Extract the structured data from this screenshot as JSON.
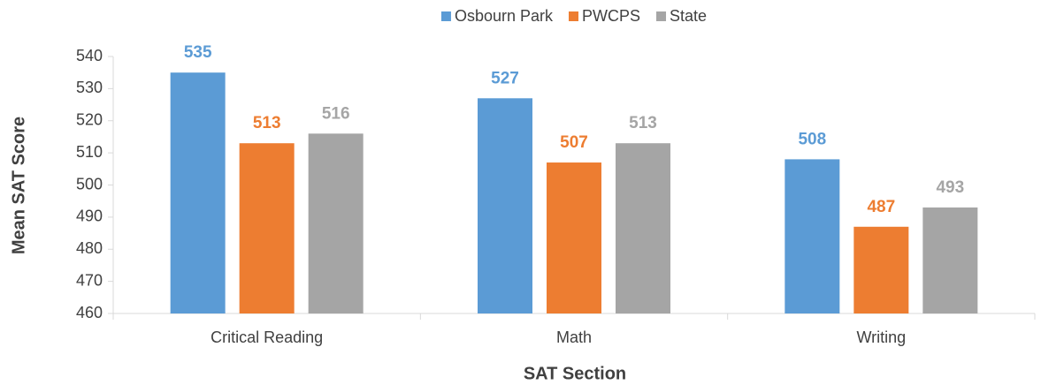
{
  "chart_data": {
    "type": "bar",
    "x_label": "SAT Section",
    "y_label": "Mean SAT Score",
    "categories": [
      "Critical Reading",
      "Math",
      "Writing"
    ],
    "series": [
      {
        "name": "Osbourn Park",
        "color": "#5b9bd5",
        "values": [
          535,
          527,
          508
        ]
      },
      {
        "name": "PWCPS",
        "color": "#ed7d31",
        "values": [
          513,
          507,
          487
        ]
      },
      {
        "name": "State",
        "color": "#a5a5a5",
        "values": [
          516,
          513,
          493
        ]
      }
    ],
    "ylim": [
      460,
      540
    ],
    "yticks": [
      460,
      470,
      480,
      490,
      500,
      510,
      520,
      530,
      540
    ],
    "legend": "top",
    "grid": false
  }
}
